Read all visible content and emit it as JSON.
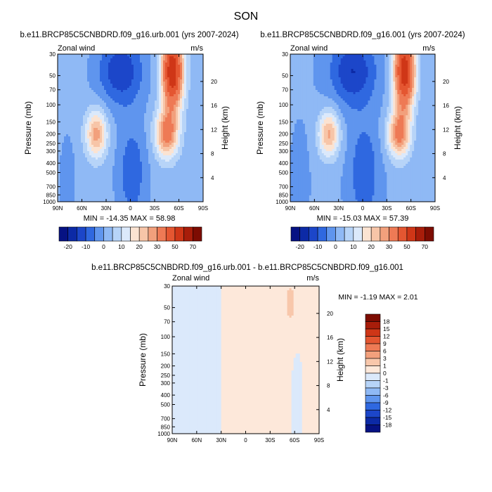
{
  "figure": {
    "title": "SON"
  },
  "colors": {
    "panel_scale": [
      "#061283",
      "#0c2aa6",
      "#1c46c9",
      "#2f68e0",
      "#5f95ee",
      "#8fb9f5",
      "#b7d4f8",
      "#dbe9fb",
      "#fbe3d2",
      "#f7c5a8",
      "#f2a07c",
      "#ee7a55",
      "#e45631",
      "#cf3617",
      "#a81d0a",
      "#7d0c02"
    ],
    "diff_scale": [
      "#061283",
      "#0c2aa6",
      "#1c46c9",
      "#2f68e0",
      "#5f95ee",
      "#8fb9f5",
      "#b7d4f8",
      "#dbe9fb",
      "#fde8da",
      "#f8c7ab",
      "#f2a07c",
      "#ee7a55",
      "#e45631",
      "#cf3617",
      "#a81d0a",
      "#7d0c02"
    ]
  },
  "chart_data": [
    {
      "type": "contour",
      "name": "urb",
      "title": "b.e11.BRCP85C5CNBDRD.f09_g16.urb.001 (yrs 2007-2024)",
      "variable_label": "Zonal wind",
      "units_label": "m/s",
      "ylabel": "Pressure (mb)",
      "ylabel_right": "Height (km)",
      "x_ticks": [
        "90N",
        "60N",
        "30N",
        "0",
        "30S",
        "60S",
        "90S"
      ],
      "p_ticks": [
        "30",
        "50",
        "70",
        "100",
        "150",
        "200",
        "250",
        "300",
        "400",
        "500",
        "700",
        "850",
        "1000"
      ],
      "h_ticks": [
        "20",
        "16",
        "12",
        "8",
        "4"
      ],
      "stats_text": "MIN = -14.35   MAX =  58.98",
      "min": -14.35,
      "max": 58.98,
      "colorbar_labels": [
        "-20",
        "-10",
        "0",
        "10",
        "20",
        "30",
        "50",
        "70"
      ],
      "colorbar_levels": [
        -25,
        -20,
        -15,
        -10,
        -5,
        0,
        5,
        10,
        15,
        20,
        25,
        30,
        40,
        50,
        60,
        70,
        80
      ]
    },
    {
      "type": "contour",
      "name": "ctl",
      "title": "b.e11.BRCP85C5CNBDRD.f09_g16.001 (yrs 2007-2024)",
      "variable_label": "Zonal wind",
      "units_label": "m/s",
      "ylabel": "Pressure (mb)",
      "ylabel_right": "Height (km)",
      "x_ticks": [
        "90N",
        "60N",
        "30N",
        "0",
        "30S",
        "60S",
        "90S"
      ],
      "p_ticks": [
        "30",
        "50",
        "70",
        "100",
        "150",
        "200",
        "250",
        "300",
        "400",
        "500",
        "700",
        "850",
        "1000"
      ],
      "h_ticks": [
        "20",
        "16",
        "12",
        "8",
        "4"
      ],
      "stats_text": "MIN = -15.03   MAX =  57.39",
      "min": -15.03,
      "max": 57.39,
      "colorbar_labels": [
        "-20",
        "-10",
        "0",
        "10",
        "20",
        "30",
        "50",
        "70"
      ],
      "colorbar_levels": [
        -25,
        -20,
        -15,
        -10,
        -5,
        0,
        5,
        10,
        15,
        20,
        25,
        30,
        40,
        50,
        60,
        70,
        80
      ]
    },
    {
      "type": "contour",
      "name": "diff",
      "title": "b.e11.BRCP85C5CNBDRD.f09_g16.urb.001 - b.e11.BRCP85C5CNBDRD.f09_g16.001",
      "variable_label": "Zonal wind",
      "units_label": "m/s",
      "ylabel": "Pressure (mb)",
      "ylabel_right": "Height (km)",
      "x_ticks": [
        "90N",
        "60N",
        "30N",
        "0",
        "30S",
        "60S",
        "90S"
      ],
      "p_ticks": [
        "30",
        "50",
        "70",
        "100",
        "150",
        "200",
        "250",
        "300",
        "400",
        "500",
        "700",
        "850",
        "1000"
      ],
      "h_ticks": [
        "20",
        "16",
        "12",
        "8",
        "4"
      ],
      "stats_text": "MIN = -1.19  MAX =  2.01",
      "min": -1.19,
      "max": 2.01,
      "colorbar_labels": [
        "18",
        "15",
        "12",
        "9",
        "6",
        "3",
        "1",
        "0",
        "-1",
        "-3",
        "-6",
        "-9",
        "-12",
        "-15",
        "-18"
      ]
    }
  ]
}
